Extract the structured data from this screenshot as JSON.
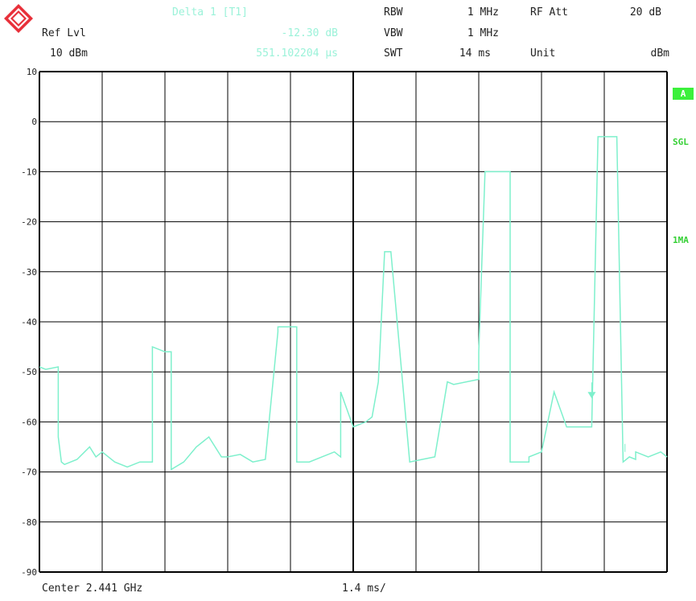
{
  "header": {
    "marker_label": "Delta 1 [T1]",
    "ref_lvl_label": "Ref Lvl",
    "marker_level": "-12.30 dB",
    "ref_lvl_value": "10 dBm",
    "marker_time": "551.102204 μs",
    "rbw_label": "RBW",
    "rbw_value": "1 MHz",
    "vbw_label": "VBW",
    "vbw_value": "1 MHz",
    "swt_label": "SWT",
    "swt_value": "14 ms",
    "rf_att_label": "RF Att",
    "rf_att_value": "20 dB",
    "unit_label": "Unit",
    "unit_value": "dBm"
  },
  "side": {
    "trace_badge": "A",
    "sweep_mode": "SGL",
    "detector": "1MA"
  },
  "footer": {
    "center": "Center 2.441 GHz",
    "span": "1.4 ms/"
  },
  "colors": {
    "trace": "#7ef0cc",
    "grid": "#000000",
    "annotation": "#9bf2d9",
    "indicator": "#3cf03c"
  },
  "chart_data": {
    "type": "line",
    "title": "",
    "xlabel": "",
    "ylabel": "",
    "y_ticks": [
      10,
      0,
      -10,
      -20,
      -30,
      -40,
      -50,
      -60,
      -70,
      -80,
      -90
    ],
    "ylim": [
      -90,
      10
    ],
    "xlim": [
      0,
      10
    ],
    "x_divisions": 10,
    "grid": true,
    "x_unit_per_div": "1.4 ms",
    "series": [
      {
        "x": [
          0,
          0.1,
          0.3,
          0.3,
          0.35,
          0.4,
          0.6,
          0.8,
          0.9,
          1.0,
          1.2,
          1.4,
          1.6,
          1.8,
          1.8,
          2.0,
          2.1,
          2.1,
          2.3,
          2.5,
          2.7,
          2.9,
          3.0,
          3.2,
          3.4,
          3.6,
          3.8,
          3.8,
          4.1,
          4.1,
          4.3,
          4.5,
          4.7,
          4.8,
          4.8,
          5.0,
          5.2,
          5.2,
          5.3,
          5.4,
          5.5,
          5.6,
          5.6,
          5.9,
          5.9,
          6.1,
          6.3,
          6.5,
          6.6,
          6.6,
          7.0,
          7.0,
          7.1,
          7.3,
          7.4,
          7.5,
          7.5,
          7.8,
          7.8,
          8.0,
          8.2,
          8.4,
          8.6,
          8.8,
          8.9,
          9.2,
          9.2,
          9.3,
          9.4,
          9.5,
          9.5,
          9.7,
          9.9,
          10.0
        ],
        "y": [
          -49,
          -49.5,
          -49,
          -63,
          -68,
          -68.5,
          -67.5,
          -65,
          -67,
          -66,
          -68,
          -69,
          -68,
          -68,
          -45,
          -46,
          -46,
          -69.5,
          -68,
          -65,
          -63,
          -67,
          -67,
          -66.5,
          -68,
          -67.5,
          -42,
          -41,
          -41,
          -68,
          -68,
          -67,
          -66,
          -67,
          -54,
          -61,
          -60,
          -60,
          -59,
          -52,
          -26,
          -26,
          -26,
          -68,
          -68,
          -67.5,
          -67,
          -52,
          -52.5,
          -52.5,
          -51.5,
          -46,
          -10,
          -10,
          -10,
          -10,
          -68,
          -68,
          -67,
          -66,
          -54,
          -61,
          -61,
          -61,
          -3,
          -3,
          -3,
          -68,
          -67,
          -67.5,
          -66,
          -67,
          -66,
          -67
        ]
      }
    ],
    "delta_marker": {
      "x": 8.8,
      "y": -55
    },
    "reference_marker": {
      "x": 9.33,
      "y": -66
    }
  }
}
